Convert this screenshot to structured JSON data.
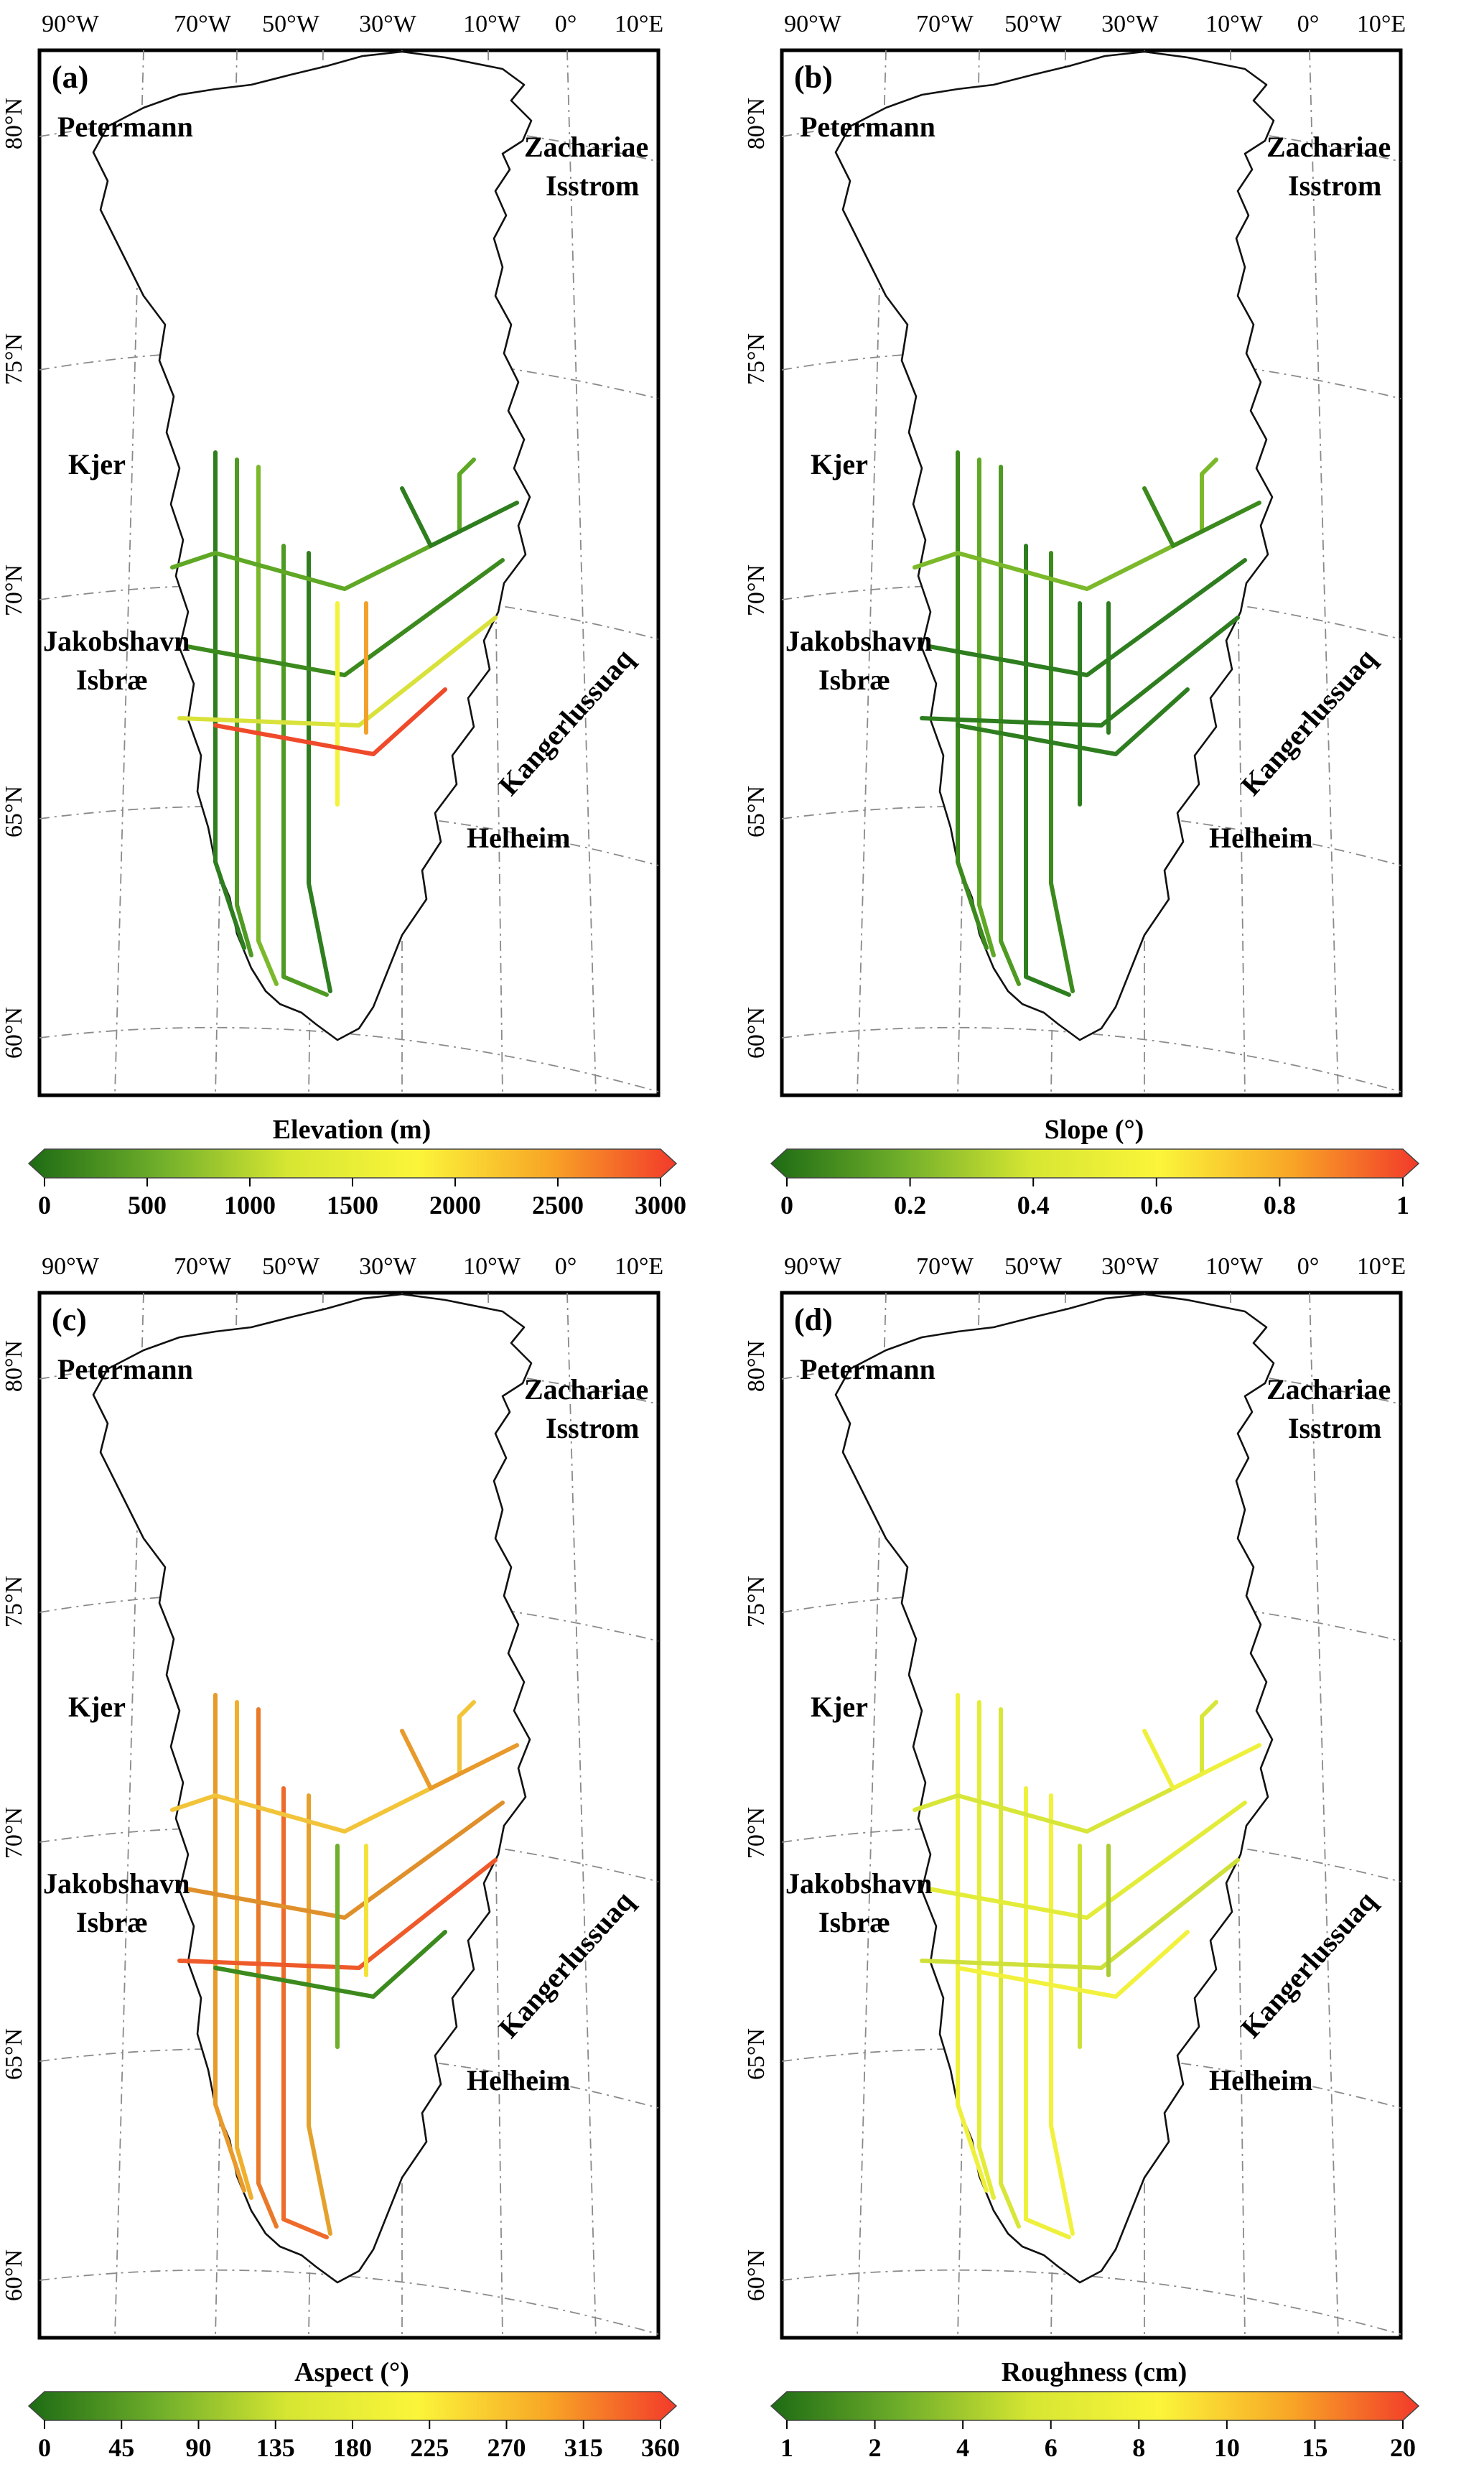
{
  "panels": [
    {
      "id": "a",
      "label": "(a)",
      "variable": "Elevation (m)",
      "colorbar_ticks": [
        "0",
        "500",
        "1000",
        "1500",
        "2000",
        "2500",
        "3000"
      ],
      "track_palette": [
        "#2e7d1f",
        "#4f9a22",
        "#7bb82a",
        "#4f9a22",
        "#2e7d1f",
        "#5fa826",
        "#3c8a1e",
        "#d8e23a",
        "#f3f33c",
        "#f2a22a",
        "#ef4a2a"
      ]
    },
    {
      "id": "b",
      "label": "(b)",
      "variable": "Slope (°)",
      "colorbar_ticks": [
        "0",
        "0.2",
        "0.4",
        "0.6",
        "0.8",
        "1"
      ],
      "track_palette": [
        "#3c8a1e",
        "#5fa826",
        "#4f9a22",
        "#2e7d1f",
        "#3c8a1e",
        "#7bb82a",
        "#2e7d1f",
        "#2e7d1f",
        "#2e7d1f",
        "#2e7d1f",
        "#2e7d1f"
      ]
    },
    {
      "id": "c",
      "label": "(c)",
      "variable": "Aspect (°)",
      "colorbar_ticks": [
        "0",
        "45",
        "90",
        "135",
        "180",
        "225",
        "270",
        "315",
        "360"
      ],
      "track_palette": [
        "#e89a2a",
        "#f0b02e",
        "#e87a2a",
        "#ee6a2a",
        "#e4a22c",
        "#f2c43a",
        "#e0902a",
        "#ef5a2a",
        "#6fb02a",
        "#f2e23a",
        "#3c8a1e"
      ]
    },
    {
      "id": "d",
      "label": "(d)",
      "variable": "Roughness (cm)",
      "colorbar_ticks": [
        "1",
        "2",
        "4",
        "6",
        "8",
        "10",
        "15",
        "20"
      ],
      "track_palette": [
        "#eef03c",
        "#e4ec3a",
        "#d8e63a",
        "#eef03c",
        "#f2f23e",
        "#d8e63a",
        "#e4ec3a",
        "#cfe03a",
        "#cfe03a",
        "#a8cc32",
        "#f2f23e"
      ]
    }
  ],
  "lon_labels": [
    "90°W",
    "70°W",
    "50°W",
    "30°W",
    "10°W",
    "0°",
    "10°E"
  ],
  "lat_labels": [
    "80°N",
    "75°N",
    "70°N",
    "65°N",
    "60°N"
  ],
  "places": {
    "petermann": "Petermann",
    "zachariae_1": "Zachariae",
    "zachariae_2": "Isstrom",
    "kjer": "Kjer",
    "jakobshavn_1": "Jakobshavn",
    "jakobshavn_2": "Isbræ",
    "kangerlussuaq": "Kangerlussuaq",
    "helheim": "Helheim"
  },
  "colorbar_colors": [
    "#1d6b14",
    "#6fae2a",
    "#d6e632",
    "#fbf53a",
    "#f8a726",
    "#f23a2a"
  ]
}
